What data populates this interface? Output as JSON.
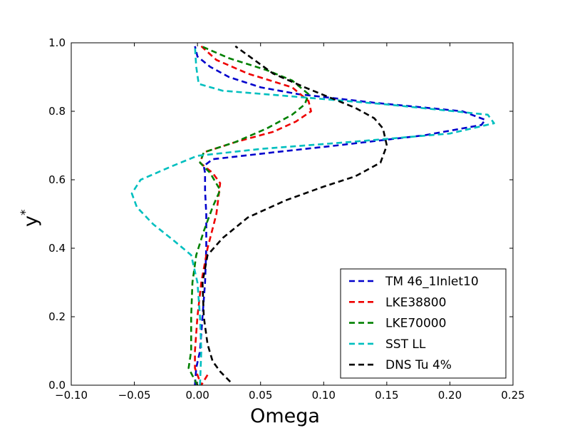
{
  "chart_data": {
    "type": "line",
    "xlabel": "Omega",
    "ylabel_base": "y",
    "ylabel_sup": "*",
    "xlim": [
      -0.1,
      0.25
    ],
    "ylim": [
      0.0,
      1.0
    ],
    "xticks": [
      -0.1,
      -0.05,
      0.0,
      0.05,
      0.1,
      0.15,
      0.2,
      0.25
    ],
    "xtick_labels": [
      "−0.10",
      "−0.05",
      "0.00",
      "0.05",
      "0.10",
      "0.15",
      "0.20",
      "0.25"
    ],
    "yticks": [
      0.0,
      0.2,
      0.4,
      0.6,
      0.8,
      1.0
    ],
    "ytick_labels": [
      "0.0",
      "0.2",
      "0.4",
      "0.6",
      "0.8",
      "1.0"
    ],
    "grid": false,
    "legend_position": "lower-right",
    "series": [
      {
        "name": "TM 46_1Inlet10",
        "color": "#0000cc",
        "points": [
          [
            -0.002,
            0.0
          ],
          [
            -0.001,
            0.05
          ],
          [
            0.002,
            0.1
          ],
          [
            0.004,
            0.2
          ],
          [
            0.006,
            0.3
          ],
          [
            0.007,
            0.4
          ],
          [
            0.007,
            0.5
          ],
          [
            0.006,
            0.57
          ],
          [
            0.006,
            0.62
          ],
          [
            0.005,
            0.64
          ],
          [
            0.012,
            0.66
          ],
          [
            0.06,
            0.68
          ],
          [
            0.11,
            0.7
          ],
          [
            0.18,
            0.73
          ],
          [
            0.225,
            0.76
          ],
          [
            0.228,
            0.775
          ],
          [
            0.21,
            0.8
          ],
          [
            0.14,
            0.825
          ],
          [
            0.08,
            0.85
          ],
          [
            0.05,
            0.87
          ],
          [
            0.025,
            0.9
          ],
          [
            0.01,
            0.93
          ],
          [
            0.0,
            0.96
          ],
          [
            -0.002,
            0.99
          ]
        ]
      },
      {
        "name": "LKE38800",
        "color": "#ee0000",
        "points": [
          [
            0.008,
            0.03
          ],
          [
            0.003,
            0.0
          ],
          [
            -0.002,
            0.05
          ],
          [
            -0.002,
            0.1
          ],
          [
            0.0,
            0.2
          ],
          [
            0.003,
            0.3
          ],
          [
            0.008,
            0.4
          ],
          [
            0.015,
            0.5
          ],
          [
            0.018,
            0.59
          ],
          [
            0.012,
            0.62
          ],
          [
            0.002,
            0.65
          ],
          [
            0.005,
            0.68
          ],
          [
            0.03,
            0.71
          ],
          [
            0.06,
            0.74
          ],
          [
            0.078,
            0.77
          ],
          [
            0.09,
            0.8
          ],
          [
            0.088,
            0.83
          ],
          [
            0.075,
            0.87
          ],
          [
            0.04,
            0.91
          ],
          [
            0.015,
            0.95
          ],
          [
            0.003,
            0.99
          ]
        ]
      },
      {
        "name": "LKE70000",
        "color": "#008000",
        "points": [
          [
            0.0,
            0.0
          ],
          [
            -0.007,
            0.05
          ],
          [
            -0.005,
            0.1
          ],
          [
            -0.005,
            0.2
          ],
          [
            -0.004,
            0.3
          ],
          [
            -0.001,
            0.38
          ],
          [
            0.005,
            0.45
          ],
          [
            0.012,
            0.52
          ],
          [
            0.018,
            0.57
          ],
          [
            0.01,
            0.62
          ],
          [
            0.002,
            0.65
          ],
          [
            0.005,
            0.68
          ],
          [
            0.03,
            0.71
          ],
          [
            0.055,
            0.75
          ],
          [
            0.075,
            0.79
          ],
          [
            0.085,
            0.82
          ],
          [
            0.088,
            0.85
          ],
          [
            0.075,
            0.89
          ],
          [
            0.055,
            0.92
          ],
          [
            0.025,
            0.955
          ],
          [
            0.003,
            0.99
          ]
        ]
      },
      {
        "name": "SST LL",
        "color": "#00bfbf",
        "points": [
          [
            0.002,
            0.0
          ],
          [
            0.003,
            0.1
          ],
          [
            0.002,
            0.2
          ],
          [
            0.0,
            0.3
          ],
          [
            -0.005,
            0.38
          ],
          [
            -0.018,
            0.42
          ],
          [
            -0.035,
            0.47
          ],
          [
            -0.048,
            0.52
          ],
          [
            -0.052,
            0.56
          ],
          [
            -0.045,
            0.6
          ],
          [
            -0.02,
            0.64
          ],
          [
            0.0,
            0.67
          ],
          [
            0.05,
            0.69
          ],
          [
            0.12,
            0.71
          ],
          [
            0.2,
            0.735
          ],
          [
            0.235,
            0.765
          ],
          [
            0.23,
            0.79
          ],
          [
            0.15,
            0.82
          ],
          [
            0.07,
            0.845
          ],
          [
            0.02,
            0.86
          ],
          [
            0.001,
            0.88
          ],
          [
            -0.001,
            0.93
          ],
          [
            -0.002,
            0.99
          ]
        ]
      },
      {
        "name": "DNS Tu 4%",
        "color": "#000000",
        "points": [
          [
            0.026,
            0.01
          ],
          [
            0.018,
            0.04
          ],
          [
            0.012,
            0.07
          ],
          [
            0.008,
            0.12
          ],
          [
            0.005,
            0.2
          ],
          [
            0.004,
            0.3
          ],
          [
            0.008,
            0.38
          ],
          [
            0.02,
            0.43
          ],
          [
            0.04,
            0.49
          ],
          [
            0.07,
            0.54
          ],
          [
            0.1,
            0.58
          ],
          [
            0.125,
            0.61
          ],
          [
            0.145,
            0.65
          ],
          [
            0.15,
            0.7
          ],
          [
            0.147,
            0.75
          ],
          [
            0.14,
            0.78
          ],
          [
            0.125,
            0.81
          ],
          [
            0.105,
            0.84
          ],
          [
            0.085,
            0.87
          ],
          [
            0.06,
            0.91
          ],
          [
            0.045,
            0.95
          ],
          [
            0.03,
            0.99
          ]
        ]
      }
    ]
  }
}
